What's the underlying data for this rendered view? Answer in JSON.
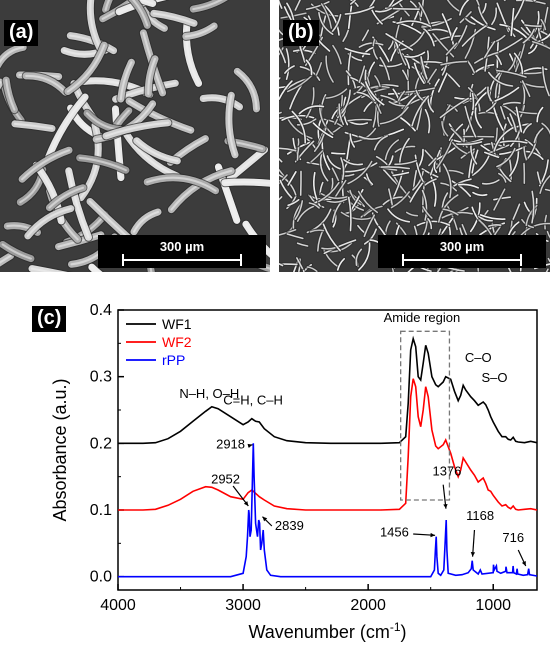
{
  "panels": {
    "a": {
      "label": "(a)",
      "scale_label": "300 µm"
    },
    "b": {
      "label": "(b)",
      "scale_label": "300 µm"
    },
    "c": {
      "label": "(c)"
    }
  },
  "chart_data": {
    "type": "line",
    "title": "",
    "xlabel": "Wavenumber (cm",
    "xlabel_sup": "-1",
    "xlabel_end": ")",
    "ylabel": "Absorbance (a.u.)",
    "xlim": [
      4000,
      650
    ],
    "ylim": [
      -0.02,
      0.4
    ],
    "x_reversed": true,
    "xticks": [
      4000,
      3000,
      2000,
      1000
    ],
    "xtick_labels": [
      "4000",
      "3000",
      "2000",
      "1000"
    ],
    "yticks": [
      0.0,
      0.1,
      0.2,
      0.3,
      0.4
    ],
    "ytick_labels": [
      "0.0",
      "0.1",
      "0.2",
      "0.3",
      "0.4"
    ],
    "legend_position": "top-left",
    "series": [
      {
        "name": "WF1",
        "color": "#000000",
        "points": [
          [
            4000,
            0.2
          ],
          [
            3800,
            0.2
          ],
          [
            3700,
            0.201
          ],
          [
            3600,
            0.207
          ],
          [
            3500,
            0.218
          ],
          [
            3400,
            0.233
          ],
          [
            3300,
            0.248
          ],
          [
            3250,
            0.255
          ],
          [
            3200,
            0.252
          ],
          [
            3100,
            0.24
          ],
          [
            3000,
            0.228
          ],
          [
            2960,
            0.232
          ],
          [
            2930,
            0.237
          ],
          [
            2900,
            0.233
          ],
          [
            2870,
            0.232
          ],
          [
            2830,
            0.222
          ],
          [
            2750,
            0.21
          ],
          [
            2650,
            0.204
          ],
          [
            2500,
            0.201
          ],
          [
            2300,
            0.2
          ],
          [
            2100,
            0.2
          ],
          [
            1900,
            0.2
          ],
          [
            1750,
            0.201
          ],
          [
            1700,
            0.21
          ],
          [
            1680,
            0.26
          ],
          [
            1660,
            0.34
          ],
          [
            1640,
            0.357
          ],
          [
            1620,
            0.345
          ],
          [
            1600,
            0.3
          ],
          [
            1580,
            0.295
          ],
          [
            1560,
            0.32
          ],
          [
            1540,
            0.347
          ],
          [
            1520,
            0.335
          ],
          [
            1490,
            0.3
          ],
          [
            1460,
            0.288
          ],
          [
            1440,
            0.285
          ],
          [
            1400,
            0.292
          ],
          [
            1380,
            0.3
          ],
          [
            1340,
            0.296
          ],
          [
            1310,
            0.278
          ],
          [
            1280,
            0.264
          ],
          [
            1260,
            0.272
          ],
          [
            1240,
            0.287
          ],
          [
            1220,
            0.28
          ],
          [
            1180,
            0.27
          ],
          [
            1150,
            0.264
          ],
          [
            1120,
            0.257
          ],
          [
            1080,
            0.262
          ],
          [
            1060,
            0.258
          ],
          [
            1040,
            0.25
          ],
          [
            1020,
            0.24
          ],
          [
            1000,
            0.232
          ],
          [
            960,
            0.218
          ],
          [
            930,
            0.21
          ],
          [
            900,
            0.21
          ],
          [
            880,
            0.206
          ],
          [
            860,
            0.205
          ],
          [
            840,
            0.209
          ],
          [
            820,
            0.203
          ],
          [
            800,
            0.202
          ],
          [
            750,
            0.201
          ],
          [
            700,
            0.203
          ],
          [
            650,
            0.201
          ]
        ]
      },
      {
        "name": "WF2",
        "color": "#ff0000",
        "points": [
          [
            4000,
            0.1
          ],
          [
            3800,
            0.1
          ],
          [
            3700,
            0.101
          ],
          [
            3600,
            0.107
          ],
          [
            3500,
            0.116
          ],
          [
            3400,
            0.128
          ],
          [
            3300,
            0.135
          ],
          [
            3250,
            0.134
          ],
          [
            3200,
            0.13
          ],
          [
            3100,
            0.12
          ],
          [
            3000,
            0.116
          ],
          [
            2960,
            0.126
          ],
          [
            2930,
            0.13
          ],
          [
            2900,
            0.125
          ],
          [
            2870,
            0.12
          ],
          [
            2830,
            0.115
          ],
          [
            2750,
            0.106
          ],
          [
            2650,
            0.102
          ],
          [
            2500,
            0.1
          ],
          [
            2300,
            0.1
          ],
          [
            2100,
            0.1
          ],
          [
            1900,
            0.1
          ],
          [
            1750,
            0.101
          ],
          [
            1700,
            0.11
          ],
          [
            1680,
            0.18
          ],
          [
            1660,
            0.27
          ],
          [
            1640,
            0.297
          ],
          [
            1620,
            0.285
          ],
          [
            1600,
            0.24
          ],
          [
            1580,
            0.225
          ],
          [
            1560,
            0.25
          ],
          [
            1540,
            0.285
          ],
          [
            1520,
            0.27
          ],
          [
            1490,
            0.22
          ],
          [
            1460,
            0.196
          ],
          [
            1440,
            0.192
          ],
          [
            1400,
            0.198
          ],
          [
            1380,
            0.205
          ],
          [
            1340,
            0.185
          ],
          [
            1310,
            0.165
          ],
          [
            1280,
            0.15
          ],
          [
            1260,
            0.16
          ],
          [
            1240,
            0.178
          ],
          [
            1220,
            0.172
          ],
          [
            1180,
            0.16
          ],
          [
            1150,
            0.152
          ],
          [
            1120,
            0.142
          ],
          [
            1080,
            0.148
          ],
          [
            1060,
            0.14
          ],
          [
            1040,
            0.13
          ],
          [
            1020,
            0.128
          ],
          [
            1000,
            0.122
          ],
          [
            960,
            0.112
          ],
          [
            930,
            0.106
          ],
          [
            900,
            0.108
          ],
          [
            880,
            0.104
          ],
          [
            860,
            0.102
          ],
          [
            840,
            0.106
          ],
          [
            820,
            0.101
          ],
          [
            800,
            0.1
          ],
          [
            750,
            0.101
          ],
          [
            700,
            0.102
          ],
          [
            650,
            0.1
          ]
        ]
      },
      {
        "name": "rPP",
        "color": "#0000ff",
        "points": [
          [
            4000,
            0.0
          ],
          [
            3200,
            0.0
          ],
          [
            3100,
            0.0
          ],
          [
            3000,
            0.005
          ],
          [
            2975,
            0.03
          ],
          [
            2965,
            0.06
          ],
          [
            2955,
            0.1
          ],
          [
            2952,
            0.095
          ],
          [
            2945,
            0.06
          ],
          [
            2935,
            0.07
          ],
          [
            2925,
            0.15
          ],
          [
            2918,
            0.2
          ],
          [
            2912,
            0.15
          ],
          [
            2900,
            0.08
          ],
          [
            2885,
            0.06
          ],
          [
            2875,
            0.085
          ],
          [
            2868,
            0.08
          ],
          [
            2860,
            0.04
          ],
          [
            2850,
            0.05
          ],
          [
            2839,
            0.07
          ],
          [
            2830,
            0.04
          ],
          [
            2810,
            0.01
          ],
          [
            2780,
            0.002
          ],
          [
            2700,
            0.0
          ],
          [
            2000,
            0.0
          ],
          [
            1500,
            0.0
          ],
          [
            1470,
            0.01
          ],
          [
            1462,
            0.04
          ],
          [
            1456,
            0.06
          ],
          [
            1450,
            0.03
          ],
          [
            1440,
            0.005
          ],
          [
            1420,
            0.002
          ],
          [
            1395,
            0.01
          ],
          [
            1385,
            0.05
          ],
          [
            1376,
            0.085
          ],
          [
            1370,
            0.04
          ],
          [
            1360,
            0.005
          ],
          [
            1300,
            0.002
          ],
          [
            1250,
            0.003
          ],
          [
            1200,
            0.006
          ],
          [
            1175,
            0.012
          ],
          [
            1168,
            0.024
          ],
          [
            1160,
            0.01
          ],
          [
            1120,
            0.004
          ],
          [
            1103,
            0.01
          ],
          [
            1090,
            0.004
          ],
          [
            1000,
            0.006
          ],
          [
            998,
            0.018
          ],
          [
            992,
            0.01
          ],
          [
            975,
            0.016
          ],
          [
            970,
            0.008
          ],
          [
            940,
            0.005
          ],
          [
            900,
            0.008
          ],
          [
            898,
            0.015
          ],
          [
            890,
            0.006
          ],
          [
            845,
            0.006
          ],
          [
            841,
            0.016
          ],
          [
            836,
            0.006
          ],
          [
            815,
            0.004
          ],
          [
            809,
            0.012
          ],
          [
            804,
            0.004
          ],
          [
            760,
            0.002
          ],
          [
            725,
            0.003
          ],
          [
            716,
            0.012
          ],
          [
            710,
            0.003
          ],
          [
            650,
            0.001
          ]
        ]
      }
    ],
    "annotations": [
      {
        "text": "N–H, O–H",
        "x": 3270,
        "y": 0.268,
        "color": "#000000"
      },
      {
        "text": "C=H, C–H",
        "x": 2920,
        "y": 0.258,
        "color": "#000000"
      },
      {
        "text": "Amide region",
        "x": 1570,
        "y": 0.382,
        "color": "#000000"
      },
      {
        "text": "C–O",
        "x": 1120,
        "y": 0.322,
        "color": "#000000"
      },
      {
        "text": "S–O",
        "x": 990,
        "y": 0.292,
        "color": "#000000"
      },
      {
        "text": "2918",
        "x": 3100,
        "y": 0.192,
        "color": "#000000"
      },
      {
        "text": "2952",
        "x": 3140,
        "y": 0.14,
        "color": "#000000"
      },
      {
        "text": "2839",
        "x": 2630,
        "y": 0.07,
        "color": "#000000"
      },
      {
        "text": "1376",
        "x": 1370,
        "y": 0.152,
        "color": "#000000"
      },
      {
        "text": "1456",
        "x": 1790,
        "y": 0.06,
        "color": "#000000"
      },
      {
        "text": "1168",
        "x": 1105,
        "y": 0.085,
        "color": "#000000"
      },
      {
        "text": "716",
        "x": 840,
        "y": 0.052,
        "color": "#000000"
      }
    ],
    "region_box": {
      "x_from": 1740,
      "x_to": 1350,
      "y_from": 0.115,
      "y_to": 0.368
    }
  }
}
